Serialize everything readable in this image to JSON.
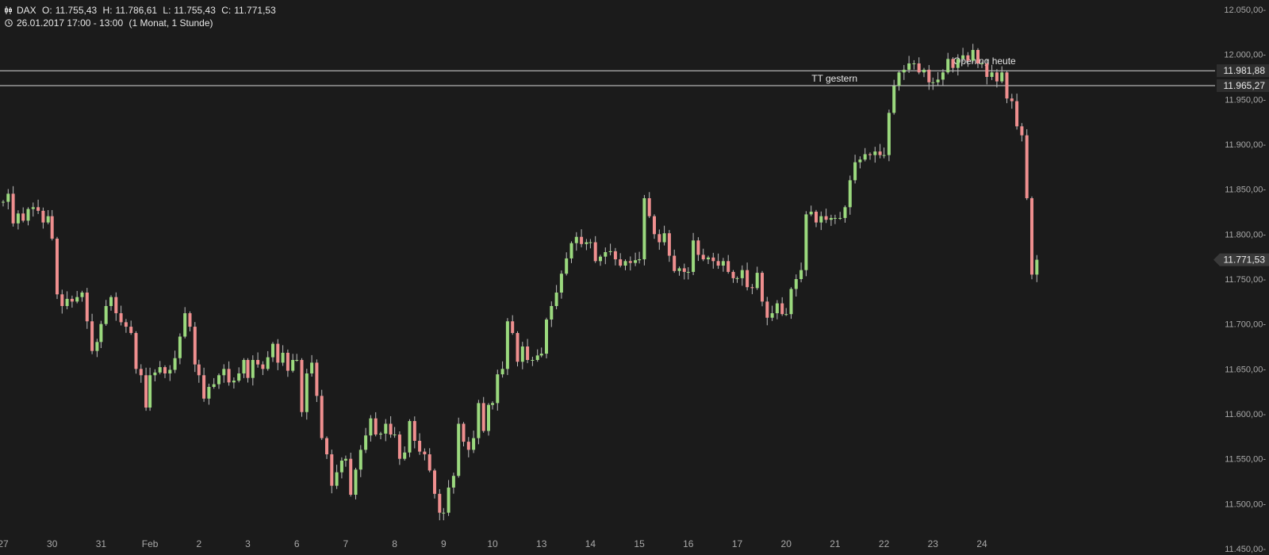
{
  "header": {
    "symbol": "DAX",
    "open_label": "O:",
    "open": "11.755,43",
    "high_label": "H:",
    "high": "11.786,61",
    "low_label": "L:",
    "low": "11.755,43",
    "close_label": "C:",
    "close": "11.771,53",
    "range": "26.01.2017 17:00 - 13:00",
    "period": "(1 Monat, 1 Stunde)"
  },
  "colors": {
    "background": "#1b1b1b",
    "up": "#9bd97e",
    "down": "#ef8f8f",
    "grid_text": "#a8a8a8",
    "line": "#d8d8d8"
  },
  "chart_data": {
    "type": "candlestick",
    "symbol": "DAX",
    "interval": "1 Stunde",
    "ylim": [
      11450,
      12050
    ],
    "y_ticks": [
      "11.450,00",
      "11.500,00",
      "11.550,00",
      "11.600,00",
      "11.650,00",
      "11.700,00",
      "11.750,00",
      "11.800,00",
      "11.850,00",
      "11.900,00",
      "11.950,00",
      "12.000,00",
      "12.050,00"
    ],
    "y_tick_values": [
      11450,
      11500,
      11550,
      11600,
      11650,
      11700,
      11750,
      11800,
      11850,
      11900,
      11950,
      12000,
      12050
    ],
    "x_labels": [
      "27",
      "30",
      "31",
      "Feb",
      "2",
      "3",
      "6",
      "7",
      "8",
      "9",
      "10",
      "13",
      "14",
      "15",
      "16",
      "17",
      "20",
      "21",
      "22",
      "23",
      "24"
    ],
    "hlines": [
      {
        "value": 11981.88,
        "label": "11.981,88",
        "annotation": "Opening heute"
      },
      {
        "value": 11965.27,
        "label": "11.965,27",
        "annotation": "TT gestern"
      }
    ],
    "last_price": {
      "value": 11771.53,
      "label": "11.771,53"
    },
    "days": [
      [
        11836,
        11845,
        11812,
        11823,
        11815,
        11828,
        11830,
        11826,
        11813,
        11820
      ],
      [
        11795,
        11733,
        11720,
        11728,
        11725,
        11730,
        11735,
        11703,
        11670,
        11680
      ],
      [
        11700,
        11720,
        11730,
        11712,
        11702,
        11697,
        11690,
        11650,
        11643,
        11607
      ],
      [
        11643,
        11646,
        11652,
        11645,
        11649,
        11662,
        11686,
        11712,
        11697,
        11655
      ],
      [
        11643,
        11617,
        11630,
        11633,
        11643,
        11650,
        11635,
        11637,
        11645,
        11660
      ],
      [
        11640,
        11660,
        11655,
        11650,
        11663,
        11678,
        11657,
        11668,
        11648,
        11660
      ],
      [
        11660,
        11602,
        11645,
        11657,
        11620,
        11573,
        11555,
        11520,
        11535,
        11548
      ],
      [
        11550,
        11510,
        11538,
        11560,
        11576,
        11595,
        11577,
        11578,
        11589,
        11577
      ],
      [
        11577,
        11550,
        11557,
        11592,
        11570,
        11558,
        11555,
        11537,
        11511,
        11490
      ],
      [
        11490,
        11518,
        11531,
        11589,
        11569,
        11560,
        11573,
        11612,
        11581,
        11610
      ],
      [
        11612,
        11644,
        11650,
        11703,
        11690,
        11658,
        11675,
        11660,
        11660,
        11665
      ],
      [
        11667,
        11705,
        11720,
        11735,
        11756,
        11773,
        11790,
        11797,
        11789,
        11791
      ],
      [
        11791,
        11770,
        11775,
        11780,
        11781,
        11772,
        11765,
        11770,
        11768,
        11771
      ],
      [
        11772,
        11840,
        11820,
        11800,
        11791,
        11801,
        11776,
        11759,
        11762,
        11758
      ],
      [
        11758,
        11793,
        11777,
        11772,
        11774,
        11770,
        11765,
        11770,
        11758,
        11751
      ],
      [
        11751,
        11760,
        11741,
        11740,
        11757,
        11725,
        11707,
        11712,
        11723,
        11711
      ],
      [
        11711,
        11739,
        11750,
        11760,
        11822,
        11825,
        11813,
        11820,
        11816,
        11818
      ],
      [
        11818,
        11818,
        11830,
        11860,
        11880,
        11883,
        11889,
        11888,
        11892,
        11888
      ],
      [
        11888,
        11935,
        11965,
        11980,
        11983,
        11990,
        11990,
        11980,
        11983,
        11969
      ],
      [
        11969,
        11972,
        11980,
        11995,
        11985,
        11995,
        11999,
        11993,
        12005,
        11990
      ],
      [
        11990,
        11975,
        11980,
        11970,
        11980,
        11951,
        11948,
        11920,
        11910,
        11840,
        11755,
        11771.53
      ]
    ]
  }
}
